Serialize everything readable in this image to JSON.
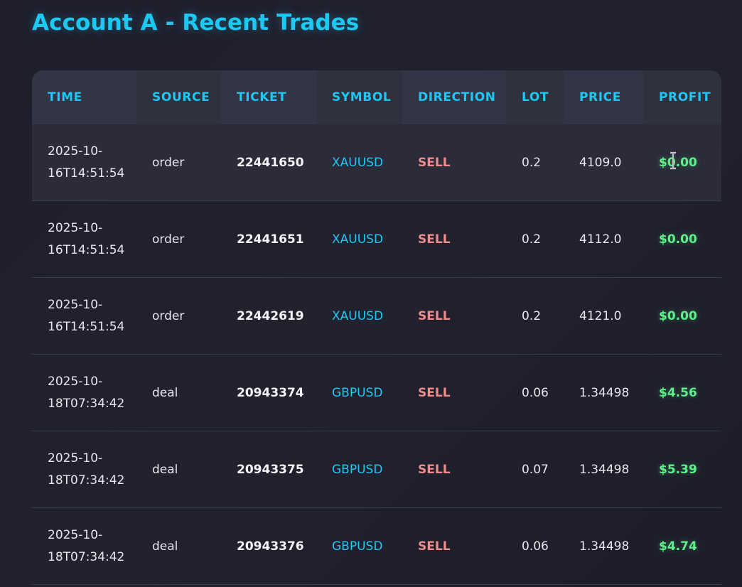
{
  "page": {
    "title": "Account A - Recent Trades"
  },
  "table": {
    "columns": [
      "TIME",
      "SOURCE",
      "TICKET",
      "SYMBOL",
      "DIRECTION",
      "LOT",
      "PRICE",
      "PROFIT"
    ],
    "rows": [
      {
        "time": "2025-10-16T14:51:54",
        "source": "order",
        "ticket": "22441650",
        "symbol": "XAUUSD",
        "direction": "SELL",
        "lot": "0.2",
        "price": "4109.0",
        "profit": "$0.00"
      },
      {
        "time": "2025-10-16T14:51:54",
        "source": "order",
        "ticket": "22441651",
        "symbol": "XAUUSD",
        "direction": "SELL",
        "lot": "0.2",
        "price": "4112.0",
        "profit": "$0.00"
      },
      {
        "time": "2025-10-16T14:51:54",
        "source": "order",
        "ticket": "22442619",
        "symbol": "XAUUSD",
        "direction": "SELL",
        "lot": "0.2",
        "price": "4121.0",
        "profit": "$0.00"
      },
      {
        "time": "2025-10-18T07:34:42",
        "source": "deal",
        "ticket": "20943374",
        "symbol": "GBPUSD",
        "direction": "SELL",
        "lot": "0.06",
        "price": "1.34498",
        "profit": "$4.56"
      },
      {
        "time": "2025-10-18T07:34:42",
        "source": "deal",
        "ticket": "20943375",
        "symbol": "GBPUSD",
        "direction": "SELL",
        "lot": "0.07",
        "price": "1.34498",
        "profit": "$5.39"
      },
      {
        "time": "2025-10-18T07:34:42",
        "source": "deal",
        "ticket": "20943376",
        "symbol": "GBPUSD",
        "direction": "SELL",
        "lot": "0.06",
        "price": "1.34498",
        "profit": "$4.74"
      }
    ]
  },
  "colors": {
    "accent": "#1ec8f4",
    "sell": "#f28b8b",
    "profit": "#5ef08a",
    "background": "#1f1f2d",
    "header": "#333445"
  },
  "icons": {
    "cursor": "text-cursor-icon"
  }
}
